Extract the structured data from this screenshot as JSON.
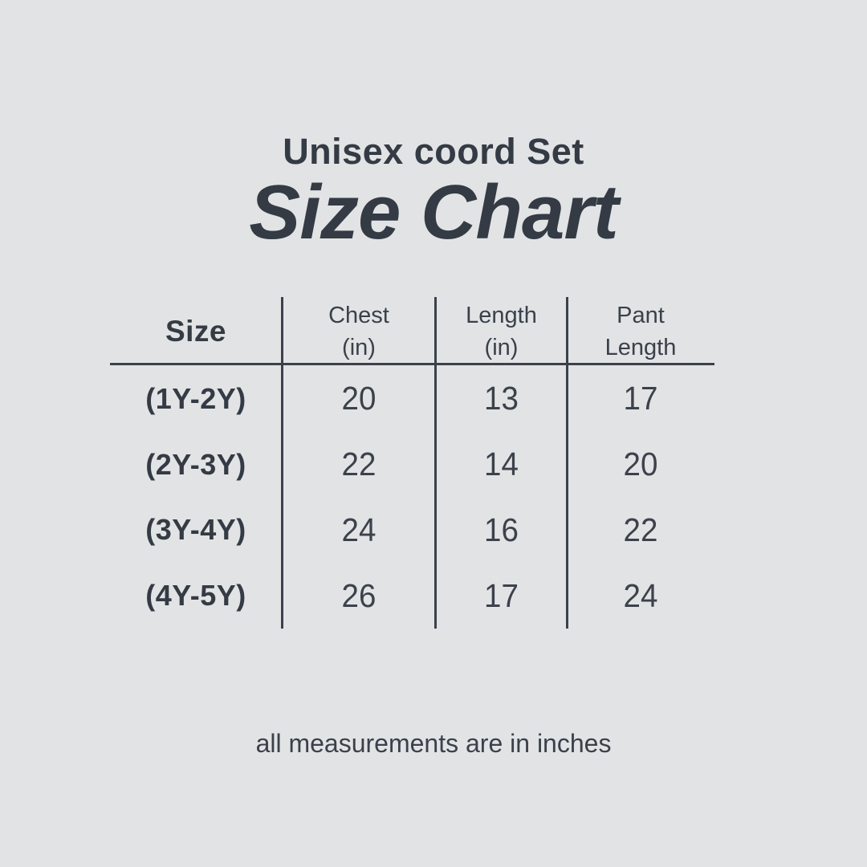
{
  "colors": {
    "background": "#e2e3e5",
    "text": "#343b44",
    "line": "#3a414b"
  },
  "header": {
    "subtitle": "Unisex coord Set",
    "title": "Size Chart"
  },
  "chart_data": {
    "type": "table",
    "subtitle": "Unisex coord Set",
    "title": "Size Chart",
    "columns": [
      {
        "line1": "Size",
        "line2": ""
      },
      {
        "line1": "Chest",
        "line2": "(in)"
      },
      {
        "line1": "Length",
        "line2": "(in)"
      },
      {
        "line1": "Pant",
        "line2": "Length"
      }
    ],
    "rows": [
      [
        "(1Y-2Y)",
        "20",
        "13",
        "17"
      ],
      [
        "(2Y-3Y)",
        "22",
        "14",
        "20"
      ],
      [
        "(3Y-4Y)",
        "24",
        "16",
        "22"
      ],
      [
        "(4Y-5Y)",
        "26",
        "17",
        "24"
      ]
    ],
    "note": "all measurements are in inches"
  },
  "footer": {
    "note": "all measurements are in inches"
  }
}
